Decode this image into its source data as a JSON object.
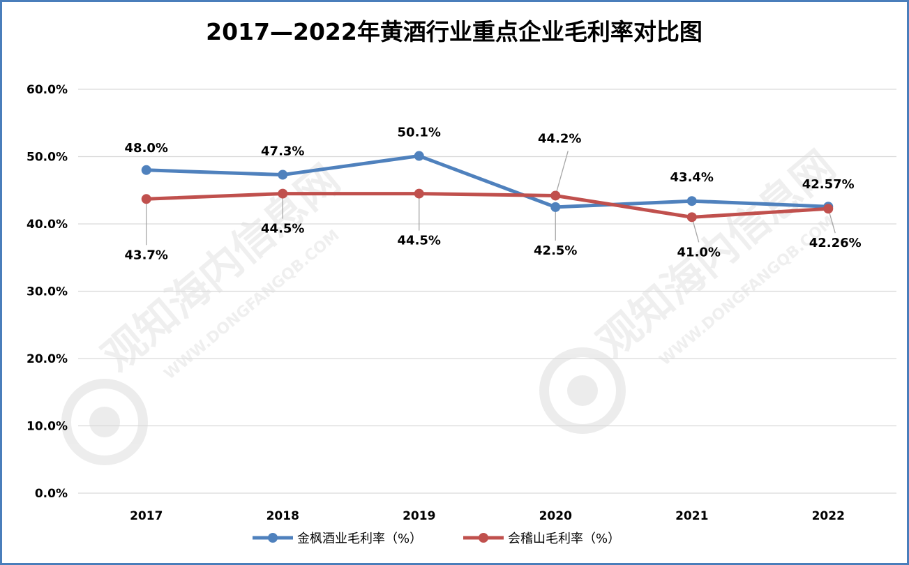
{
  "chart_data": {
    "type": "line",
    "title": "2017—2022年黄酒行业重点企业毛利率对比图",
    "categories": [
      "2017",
      "2018",
      "2019",
      "2020",
      "2021",
      "2022"
    ],
    "ylim": [
      0,
      60
    ],
    "yticks": [
      "0.0%",
      "10.0%",
      "20.0%",
      "30.0%",
      "40.0%",
      "50.0%",
      "60.0%"
    ],
    "grid": true,
    "legend_position": "bottom",
    "series": [
      {
        "name": "金枫酒业毛利率（%）",
        "color": "#4f81bd",
        "values": [
          48.0,
          47.3,
          50.1,
          42.5,
          43.4,
          42.57
        ],
        "labels": [
          "48.0%",
          "47.3%",
          "50.1%",
          "42.5%",
          "43.4%",
          "42.57%"
        ]
      },
      {
        "name": "会稽山毛利率（%）",
        "color": "#c0504d",
        "values": [
          43.7,
          44.5,
          44.5,
          44.2,
          41.0,
          42.26
        ],
        "labels": [
          "43.7%",
          "44.5%",
          "44.5%",
          "44.2%",
          "41.0%",
          "42.26%"
        ]
      }
    ]
  },
  "watermark": {
    "brand": "观知海内信息网",
    "url": "WWW.DONGFANGQB.COM"
  }
}
